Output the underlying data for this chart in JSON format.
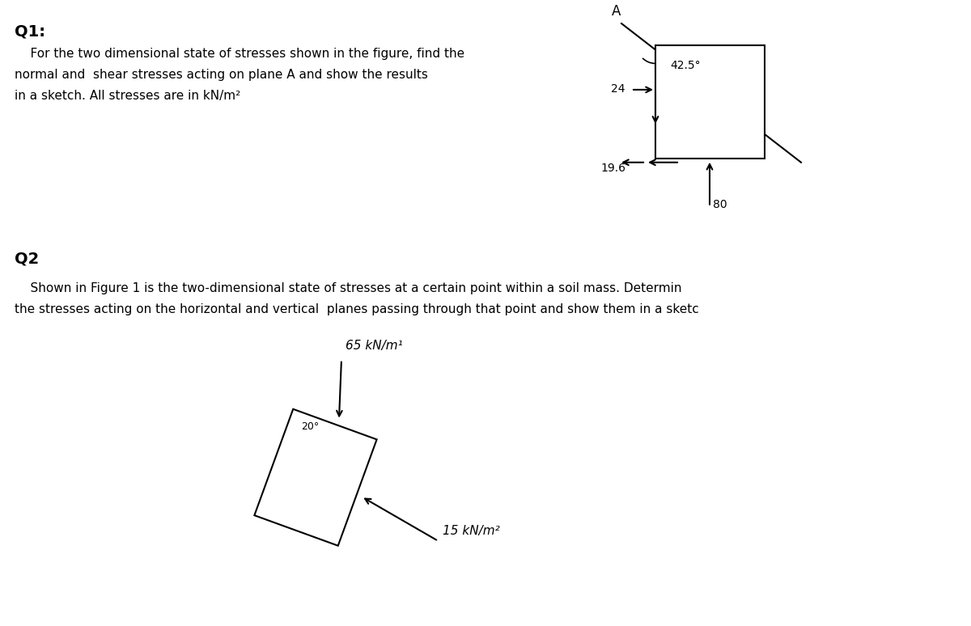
{
  "q1_title": "Q1:",
  "q1_text_line1": "    For the two dimensional state of stresses shown in the figure, find the",
  "q1_text_line2": "normal and  shear stresses acting on plane A and show the results",
  "q1_text_line3": "in a sketch. All stresses are in kN/m²",
  "q2_title": "Q2",
  "q2_text_line1": "    Shown in Figure 1 is the two-dimensional state of stresses at a certain point within a soil mass. Determin",
  "q2_text_line2": "the stresses acting on the horizontal and vertical  planes passing through that point and show them in a sketc",
  "q1_angle_label": "42.5°",
  "q1_stress_24": "24",
  "q1_stress_19_6": "19.6",
  "q1_stress_80": "80",
  "q1_label_A": "A",
  "q2_angle_label": "20°",
  "q2_stress_65": "65 kN/m¹",
  "q2_stress_15": "15 kN/m²"
}
